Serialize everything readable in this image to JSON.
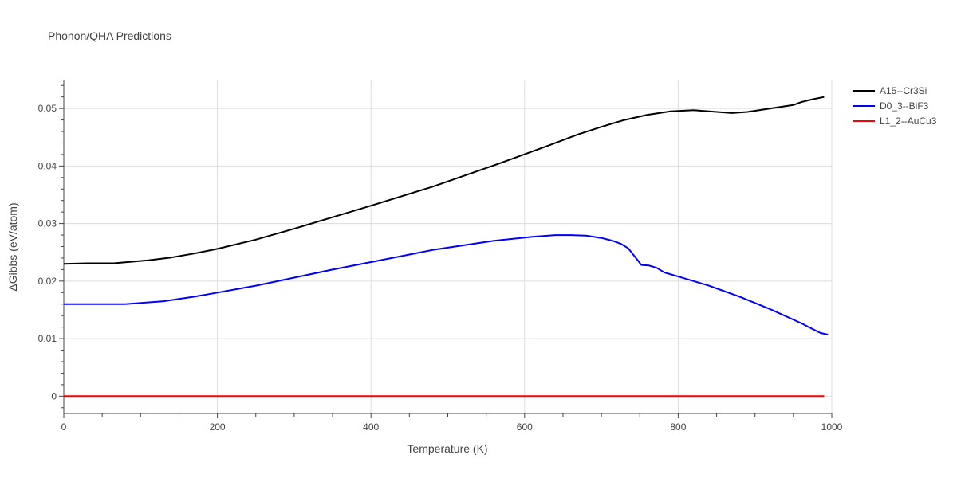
{
  "chart_data": {
    "type": "line",
    "title": "Phonon/QHA Predictions",
    "xlabel": "Temperature (K)",
    "ylabel": "ΔGibbs (eV/atom)",
    "xlim": [
      0,
      1000
    ],
    "ylim": [
      -0.003,
      0.055
    ],
    "x_ticks": [
      0,
      200,
      400,
      600,
      800,
      1000
    ],
    "x_tick_labels": [
      "0",
      "200",
      "400",
      "600",
      "800",
      "1000"
    ],
    "y_ticks": [
      0,
      0.01,
      0.02,
      0.03,
      0.04,
      0.05
    ],
    "y_tick_labels": [
      "0",
      "0.01",
      "0.02",
      "0.03",
      "0.04",
      "0.05"
    ],
    "grid": true,
    "legend_position": "top-right",
    "series": [
      {
        "name": "A15--Cr3Si",
        "color": "#000000",
        "x": [
          0,
          30,
          65,
          110,
          140,
          170,
          200,
          250,
          300,
          350,
          400,
          480,
          560,
          630,
          670,
          700,
          730,
          760,
          790,
          820,
          840,
          870,
          890,
          920,
          950,
          960,
          975,
          990
        ],
        "y": [
          0.023,
          0.0231,
          0.0231,
          0.0236,
          0.0241,
          0.0248,
          0.0256,
          0.0272,
          0.0291,
          0.0311,
          0.0331,
          0.0364,
          0.0401,
          0.0435,
          0.0455,
          0.0468,
          0.048,
          0.0489,
          0.0495,
          0.0497,
          0.0495,
          0.0492,
          0.0494,
          0.05,
          0.0506,
          0.0511,
          0.0516,
          0.052
        ]
      },
      {
        "name": "D0_3--BiF3",
        "color": "#0000ff",
        "x": [
          0,
          40,
          80,
          130,
          170,
          200,
          250,
          300,
          350,
          400,
          480,
          560,
          610,
          640,
          660,
          680,
          700,
          715,
          725,
          735,
          745,
          752,
          762,
          772,
          782,
          800,
          840,
          880,
          920,
          960,
          985,
          995
        ],
        "y": [
          0.016,
          0.016,
          0.016,
          0.0165,
          0.0173,
          0.018,
          0.0192,
          0.0206,
          0.022,
          0.0233,
          0.0254,
          0.027,
          0.0277,
          0.028,
          0.028,
          0.0279,
          0.0275,
          0.027,
          0.0265,
          0.0257,
          0.024,
          0.0228,
          0.0227,
          0.0223,
          0.0215,
          0.0208,
          0.0192,
          0.0173,
          0.0151,
          0.0127,
          0.011,
          0.0107
        ]
      },
      {
        "name": "L1_2--AuCu3",
        "color": "#ff0000",
        "x": [
          0,
          990
        ],
        "y": [
          0,
          0
        ]
      }
    ]
  }
}
